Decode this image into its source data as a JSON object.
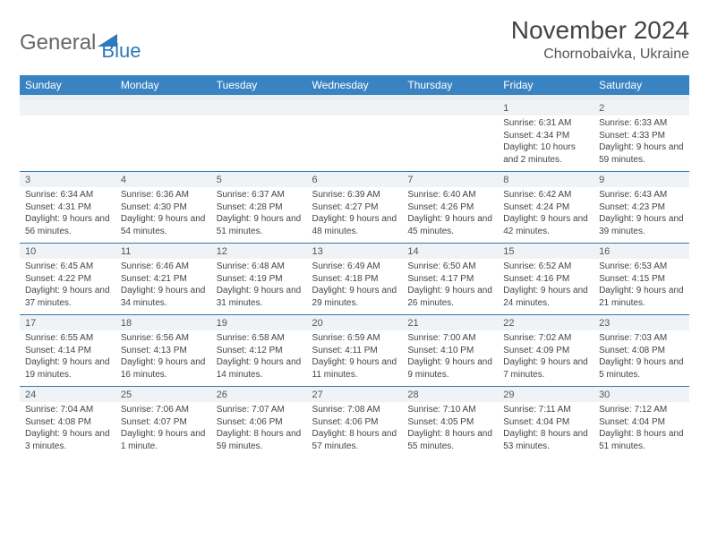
{
  "brand": {
    "general": "General",
    "blue": "Blue"
  },
  "title": {
    "month": "November 2024",
    "location": "Chornobaivka, Ukraine"
  },
  "colors": {
    "header_bg": "#3a83c2",
    "border": "#2d79b9",
    "daynum_bg": "#f0f3f5",
    "sep_bg": "#e9eef2",
    "text": "#444444"
  },
  "dayHeaders": [
    "Sunday",
    "Monday",
    "Tuesday",
    "Wednesday",
    "Thursday",
    "Friday",
    "Saturday"
  ],
  "weeks": [
    [
      {
        "num": "",
        "sunrise": "",
        "sunset": "",
        "daylight": ""
      },
      {
        "num": "",
        "sunrise": "",
        "sunset": "",
        "daylight": ""
      },
      {
        "num": "",
        "sunrise": "",
        "sunset": "",
        "daylight": ""
      },
      {
        "num": "",
        "sunrise": "",
        "sunset": "",
        "daylight": ""
      },
      {
        "num": "",
        "sunrise": "",
        "sunset": "",
        "daylight": ""
      },
      {
        "num": "1",
        "sunrise": "Sunrise: 6:31 AM",
        "sunset": "Sunset: 4:34 PM",
        "daylight": "Daylight: 10 hours and 2 minutes."
      },
      {
        "num": "2",
        "sunrise": "Sunrise: 6:33 AM",
        "sunset": "Sunset: 4:33 PM",
        "daylight": "Daylight: 9 hours and 59 minutes."
      }
    ],
    [
      {
        "num": "3",
        "sunrise": "Sunrise: 6:34 AM",
        "sunset": "Sunset: 4:31 PM",
        "daylight": "Daylight: 9 hours and 56 minutes."
      },
      {
        "num": "4",
        "sunrise": "Sunrise: 6:36 AM",
        "sunset": "Sunset: 4:30 PM",
        "daylight": "Daylight: 9 hours and 54 minutes."
      },
      {
        "num": "5",
        "sunrise": "Sunrise: 6:37 AM",
        "sunset": "Sunset: 4:28 PM",
        "daylight": "Daylight: 9 hours and 51 minutes."
      },
      {
        "num": "6",
        "sunrise": "Sunrise: 6:39 AM",
        "sunset": "Sunset: 4:27 PM",
        "daylight": "Daylight: 9 hours and 48 minutes."
      },
      {
        "num": "7",
        "sunrise": "Sunrise: 6:40 AM",
        "sunset": "Sunset: 4:26 PM",
        "daylight": "Daylight: 9 hours and 45 minutes."
      },
      {
        "num": "8",
        "sunrise": "Sunrise: 6:42 AM",
        "sunset": "Sunset: 4:24 PM",
        "daylight": "Daylight: 9 hours and 42 minutes."
      },
      {
        "num": "9",
        "sunrise": "Sunrise: 6:43 AM",
        "sunset": "Sunset: 4:23 PM",
        "daylight": "Daylight: 9 hours and 39 minutes."
      }
    ],
    [
      {
        "num": "10",
        "sunrise": "Sunrise: 6:45 AM",
        "sunset": "Sunset: 4:22 PM",
        "daylight": "Daylight: 9 hours and 37 minutes."
      },
      {
        "num": "11",
        "sunrise": "Sunrise: 6:46 AM",
        "sunset": "Sunset: 4:21 PM",
        "daylight": "Daylight: 9 hours and 34 minutes."
      },
      {
        "num": "12",
        "sunrise": "Sunrise: 6:48 AM",
        "sunset": "Sunset: 4:19 PM",
        "daylight": "Daylight: 9 hours and 31 minutes."
      },
      {
        "num": "13",
        "sunrise": "Sunrise: 6:49 AM",
        "sunset": "Sunset: 4:18 PM",
        "daylight": "Daylight: 9 hours and 29 minutes."
      },
      {
        "num": "14",
        "sunrise": "Sunrise: 6:50 AM",
        "sunset": "Sunset: 4:17 PM",
        "daylight": "Daylight: 9 hours and 26 minutes."
      },
      {
        "num": "15",
        "sunrise": "Sunrise: 6:52 AM",
        "sunset": "Sunset: 4:16 PM",
        "daylight": "Daylight: 9 hours and 24 minutes."
      },
      {
        "num": "16",
        "sunrise": "Sunrise: 6:53 AM",
        "sunset": "Sunset: 4:15 PM",
        "daylight": "Daylight: 9 hours and 21 minutes."
      }
    ],
    [
      {
        "num": "17",
        "sunrise": "Sunrise: 6:55 AM",
        "sunset": "Sunset: 4:14 PM",
        "daylight": "Daylight: 9 hours and 19 minutes."
      },
      {
        "num": "18",
        "sunrise": "Sunrise: 6:56 AM",
        "sunset": "Sunset: 4:13 PM",
        "daylight": "Daylight: 9 hours and 16 minutes."
      },
      {
        "num": "19",
        "sunrise": "Sunrise: 6:58 AM",
        "sunset": "Sunset: 4:12 PM",
        "daylight": "Daylight: 9 hours and 14 minutes."
      },
      {
        "num": "20",
        "sunrise": "Sunrise: 6:59 AM",
        "sunset": "Sunset: 4:11 PM",
        "daylight": "Daylight: 9 hours and 11 minutes."
      },
      {
        "num": "21",
        "sunrise": "Sunrise: 7:00 AM",
        "sunset": "Sunset: 4:10 PM",
        "daylight": "Daylight: 9 hours and 9 minutes."
      },
      {
        "num": "22",
        "sunrise": "Sunrise: 7:02 AM",
        "sunset": "Sunset: 4:09 PM",
        "daylight": "Daylight: 9 hours and 7 minutes."
      },
      {
        "num": "23",
        "sunrise": "Sunrise: 7:03 AM",
        "sunset": "Sunset: 4:08 PM",
        "daylight": "Daylight: 9 hours and 5 minutes."
      }
    ],
    [
      {
        "num": "24",
        "sunrise": "Sunrise: 7:04 AM",
        "sunset": "Sunset: 4:08 PM",
        "daylight": "Daylight: 9 hours and 3 minutes."
      },
      {
        "num": "25",
        "sunrise": "Sunrise: 7:06 AM",
        "sunset": "Sunset: 4:07 PM",
        "daylight": "Daylight: 9 hours and 1 minute."
      },
      {
        "num": "26",
        "sunrise": "Sunrise: 7:07 AM",
        "sunset": "Sunset: 4:06 PM",
        "daylight": "Daylight: 8 hours and 59 minutes."
      },
      {
        "num": "27",
        "sunrise": "Sunrise: 7:08 AM",
        "sunset": "Sunset: 4:06 PM",
        "daylight": "Daylight: 8 hours and 57 minutes."
      },
      {
        "num": "28",
        "sunrise": "Sunrise: 7:10 AM",
        "sunset": "Sunset: 4:05 PM",
        "daylight": "Daylight: 8 hours and 55 minutes."
      },
      {
        "num": "29",
        "sunrise": "Sunrise: 7:11 AM",
        "sunset": "Sunset: 4:04 PM",
        "daylight": "Daylight: 8 hours and 53 minutes."
      },
      {
        "num": "30",
        "sunrise": "Sunrise: 7:12 AM",
        "sunset": "Sunset: 4:04 PM",
        "daylight": "Daylight: 8 hours and 51 minutes."
      }
    ]
  ]
}
